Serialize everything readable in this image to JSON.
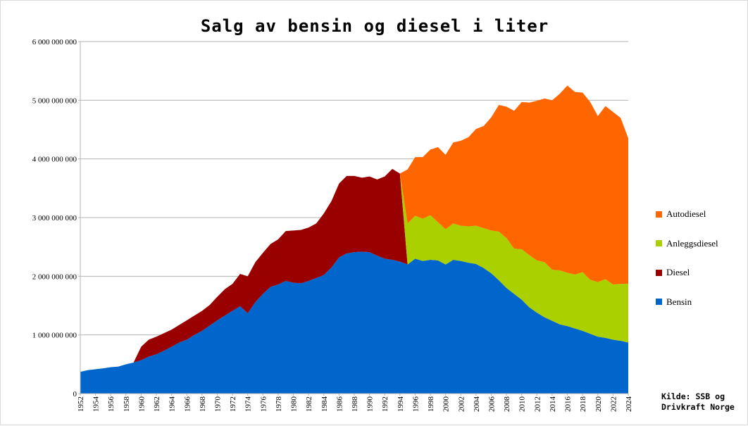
{
  "chart_data": {
    "type": "area",
    "stacked": true,
    "title": "Salg av bensin og diesel i liter",
    "xlabel": "",
    "ylabel": "",
    "ylim": [
      0,
      6000000000
    ],
    "y_ticks": [
      0,
      1000000000,
      2000000000,
      3000000000,
      4000000000,
      5000000000,
      6000000000
    ],
    "y_tick_labels": [
      "0",
      "1 000 000 000",
      "2 000 000 000",
      "3 000 000 000",
      "4 000 000 000",
      "5 000 000 000",
      "6 000 000 000"
    ],
    "x_tick_labels": [
      "1952",
      "1954",
      "1956",
      "1958",
      "1960",
      "1962",
      "1964",
      "1966",
      "1968",
      "1970",
      "1972",
      "1974",
      "1976",
      "1978",
      "1980",
      "1982",
      "1984",
      "1986",
      "1988",
      "1990",
      "1992",
      "1994",
      "1996",
      "1998",
      "2000",
      "2002",
      "2004",
      "2006",
      "2008",
      "2010",
      "2012",
      "2014",
      "2016",
      "2018",
      "2020",
      "2022",
      "2024"
    ],
    "grid": "horizontal",
    "legend_position": "right",
    "x": [
      1952,
      1953,
      1954,
      1955,
      1956,
      1957,
      1958,
      1959,
      1960,
      1961,
      1962,
      1963,
      1964,
      1965,
      1966,
      1967,
      1968,
      1969,
      1970,
      1971,
      1972,
      1973,
      1974,
      1975,
      1976,
      1977,
      1978,
      1979,
      1980,
      1981,
      1982,
      1983,
      1984,
      1985,
      1986,
      1987,
      1988,
      1989,
      1990,
      1991,
      1992,
      1993,
      1994,
      1995,
      1996,
      1997,
      1998,
      1999,
      2000,
      2001,
      2002,
      2003,
      2004,
      2005,
      2006,
      2007,
      2008,
      2009,
      2010,
      2011,
      2012,
      2013,
      2014,
      2015,
      2016,
      2017,
      2018,
      2019,
      2020,
      2021,
      2022,
      2023,
      2024
    ],
    "series": [
      {
        "name": "Bensin",
        "color": "#0066cc",
        "values": [
          370000000,
          400000000,
          415000000,
          430000000,
          450000000,
          460000000,
          500000000,
          530000000,
          570000000,
          630000000,
          670000000,
          730000000,
          800000000,
          870000000,
          920000000,
          1000000000,
          1070000000,
          1160000000,
          1250000000,
          1330000000,
          1410000000,
          1490000000,
          1370000000,
          1560000000,
          1700000000,
          1820000000,
          1860000000,
          1920000000,
          1890000000,
          1880000000,
          1920000000,
          1970000000,
          2020000000,
          2150000000,
          2320000000,
          2390000000,
          2410000000,
          2420000000,
          2410000000,
          2350000000,
          2300000000,
          2280000000,
          2250000000,
          2200000000,
          2300000000,
          2260000000,
          2280000000,
          2270000000,
          2200000000,
          2280000000,
          2260000000,
          2230000000,
          2210000000,
          2140000000,
          2050000000,
          1930000000,
          1800000000,
          1700000000,
          1600000000,
          1470000000,
          1380000000,
          1300000000,
          1240000000,
          1180000000,
          1150000000,
          1110000000,
          1070000000,
          1020000000,
          970000000,
          950000000,
          920000000,
          900000000,
          870000000
        ]
      },
      {
        "name": "Diesel",
        "color": "#990000",
        "values": [
          0,
          0,
          0,
          0,
          0,
          0,
          0,
          0,
          230000000,
          290000000,
          300000000,
          300000000,
          290000000,
          300000000,
          330000000,
          330000000,
          340000000,
          350000000,
          400000000,
          450000000,
          460000000,
          550000000,
          630000000,
          680000000,
          700000000,
          730000000,
          770000000,
          850000000,
          890000000,
          910000000,
          910000000,
          930000000,
          1050000000,
          1130000000,
          1260000000,
          1320000000,
          1300000000,
          1260000000,
          1290000000,
          1300000000,
          1400000000,
          1550000000,
          1500000000,
          0,
          0,
          0,
          0,
          0,
          0,
          0,
          0,
          0,
          0,
          0,
          0,
          0,
          0,
          0,
          0,
          0,
          0,
          0,
          0,
          0,
          0,
          0,
          0,
          0,
          0,
          0,
          0,
          0,
          0
        ]
      },
      {
        "name": "Anleggsdiesel",
        "color": "#aad000",
        "values": [
          0,
          0,
          0,
          0,
          0,
          0,
          0,
          0,
          0,
          0,
          0,
          0,
          0,
          0,
          0,
          0,
          0,
          0,
          0,
          0,
          0,
          0,
          0,
          0,
          0,
          0,
          0,
          0,
          0,
          0,
          0,
          0,
          0,
          0,
          0,
          0,
          0,
          0,
          0,
          0,
          0,
          0,
          0,
          700000000,
          730000000,
          720000000,
          760000000,
          650000000,
          600000000,
          620000000,
          600000000,
          620000000,
          650000000,
          680000000,
          730000000,
          830000000,
          850000000,
          770000000,
          860000000,
          890000000,
          890000000,
          940000000,
          870000000,
          920000000,
          910000000,
          920000000,
          1000000000,
          920000000,
          930000000,
          1000000000,
          940000000,
          970000000,
          1000000000
        ]
      },
      {
        "name": "Autodiesel",
        "color": "#ff6600",
        "values": [
          0,
          0,
          0,
          0,
          0,
          0,
          0,
          0,
          0,
          0,
          0,
          0,
          0,
          0,
          0,
          0,
          0,
          0,
          0,
          0,
          0,
          0,
          0,
          0,
          0,
          0,
          0,
          0,
          0,
          0,
          0,
          0,
          0,
          0,
          0,
          0,
          0,
          0,
          0,
          0,
          0,
          0,
          0,
          920000000,
          1000000000,
          1050000000,
          1120000000,
          1280000000,
          1270000000,
          1380000000,
          1450000000,
          1520000000,
          1650000000,
          1740000000,
          1930000000,
          2160000000,
          2240000000,
          2350000000,
          2510000000,
          2600000000,
          2720000000,
          2790000000,
          2890000000,
          3010000000,
          3190000000,
          3110000000,
          3060000000,
          3030000000,
          2830000000,
          2950000000,
          2940000000,
          2830000000,
          2480000000
        ]
      }
    ],
    "legend_order": [
      "Autodiesel",
      "Anleggsdiesel",
      "Diesel",
      "Bensin"
    ],
    "source_note": "Kilde: SSB og\nDrivkraft Norge"
  }
}
